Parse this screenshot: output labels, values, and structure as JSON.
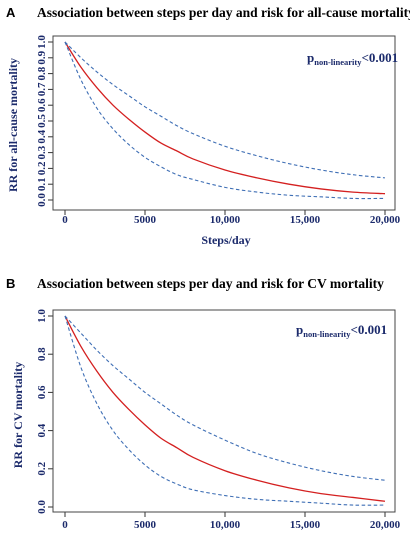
{
  "chart_data": [
    {
      "type": "line",
      "panel_label": "A",
      "title": "Association between steps per day and risk for all-cause mortality",
      "xlabel": "Steps/day",
      "ylabel": "RR for all-cause mortality",
      "xlim": [
        0,
        20000
      ],
      "ylim": [
        0,
        1.0
      ],
      "xticks": [
        0,
        5000,
        10000,
        15000,
        20000
      ],
      "xtick_labels": [
        "0",
        "5000",
        "10,000",
        "15,000",
        "20,000"
      ],
      "yticks": [
        0.0,
        0.1,
        0.2,
        0.3,
        0.4,
        0.5,
        0.6,
        0.7,
        0.8,
        0.9,
        1.0
      ],
      "ytick_labels": [
        "0.0",
        "0.1",
        "0.2",
        "0.3",
        "0.4",
        "0.5",
        "0.6",
        "0.7",
        "0.8",
        "0.9",
        "1.0"
      ],
      "annotation": {
        "p": "p",
        "sub": "non-linearity",
        "rest": "<0.001"
      },
      "grid": false,
      "series": [
        {
          "color": "#d42020",
          "dash": "solid",
          "x": [
            0,
            1000,
            2000,
            3000,
            4000,
            5000,
            6000,
            7000,
            8000,
            10000,
            12000,
            14000,
            16000,
            18000,
            20000
          ],
          "values": [
            1.0,
            0.84,
            0.71,
            0.6,
            0.51,
            0.43,
            0.36,
            0.31,
            0.26,
            0.19,
            0.14,
            0.1,
            0.07,
            0.05,
            0.04
          ]
        },
        {
          "color": "#3f6fb5",
          "dash": "dashed",
          "x": [
            0,
            1000,
            2000,
            3000,
            4000,
            5000,
            6000,
            7000,
            8000,
            10000,
            12000,
            14000,
            16000,
            18000,
            20000
          ],
          "values": [
            1.0,
            0.9,
            0.81,
            0.73,
            0.66,
            0.59,
            0.53,
            0.47,
            0.42,
            0.34,
            0.28,
            0.23,
            0.19,
            0.16,
            0.14
          ]
        },
        {
          "color": "#3f6fb5",
          "dash": "dashed",
          "x": [
            0,
            1000,
            2000,
            3000,
            4000,
            5000,
            6000,
            7000,
            8000,
            10000,
            12000,
            14000,
            16000,
            18000,
            20000
          ],
          "values": [
            1.0,
            0.76,
            0.58,
            0.45,
            0.35,
            0.27,
            0.21,
            0.16,
            0.13,
            0.08,
            0.05,
            0.03,
            0.02,
            0.01,
            0.01
          ]
        }
      ]
    },
    {
      "type": "line",
      "panel_label": "B",
      "title": "Association between steps per day and risk for CV mortality",
      "xlabel": "",
      "ylabel": "RR for CV mortality",
      "xlim": [
        0,
        20000
      ],
      "ylim": [
        0,
        1.0
      ],
      "xticks": [
        0,
        5000,
        10000,
        15000,
        20000
      ],
      "xtick_labels": [
        "0",
        "5000",
        "10,000",
        "15,000",
        "20,000"
      ],
      "yticks": [
        0.0,
        0.2,
        0.4,
        0.6,
        0.8,
        1.0
      ],
      "ytick_labels": [
        "0.0",
        "0.2",
        "0.4",
        "0.6",
        "0.8",
        "1.0"
      ],
      "annotation": {
        "p": "p",
        "sub": "non-linearity",
        "rest": "<0.001"
      },
      "grid": false,
      "series": [
        {
          "color": "#d42020",
          "dash": "solid",
          "x": [
            0,
            1000,
            2000,
            3000,
            4000,
            5000,
            6000,
            7000,
            8000,
            10000,
            12000,
            14000,
            16000,
            18000,
            20000
          ],
          "values": [
            1.0,
            0.84,
            0.71,
            0.6,
            0.51,
            0.43,
            0.36,
            0.31,
            0.26,
            0.19,
            0.14,
            0.1,
            0.07,
            0.05,
            0.03
          ]
        },
        {
          "color": "#3f6fb5",
          "dash": "dashed",
          "x": [
            0,
            1000,
            2000,
            3000,
            4000,
            5000,
            6000,
            7000,
            8000,
            10000,
            12000,
            14000,
            16000,
            18000,
            20000
          ],
          "values": [
            1.0,
            0.91,
            0.82,
            0.74,
            0.67,
            0.6,
            0.54,
            0.48,
            0.43,
            0.35,
            0.28,
            0.23,
            0.19,
            0.16,
            0.14
          ]
        },
        {
          "color": "#3f6fb5",
          "dash": "dashed",
          "x": [
            0,
            1000,
            2000,
            3000,
            4000,
            5000,
            6000,
            7000,
            8000,
            10000,
            12000,
            14000,
            16000,
            18000,
            20000
          ],
          "values": [
            1.0,
            0.73,
            0.54,
            0.4,
            0.3,
            0.22,
            0.16,
            0.12,
            0.09,
            0.06,
            0.04,
            0.03,
            0.02,
            0.01,
            0.01
          ]
        }
      ]
    }
  ]
}
